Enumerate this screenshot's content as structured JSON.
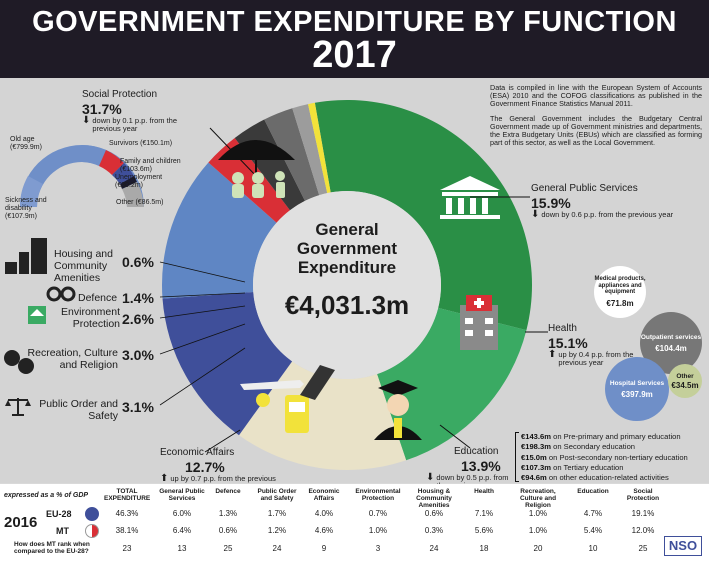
{
  "header": {
    "title": "GOVERNMENT EXPENDITURE BY FUNCTION",
    "year": "2017"
  },
  "center": {
    "line1": "General",
    "line2": "Government",
    "line3": "Expenditure",
    "total": "€4,031.3m"
  },
  "note": {
    "p1": "Data is compiled in line with the European System of Accounts (ESA) 2010 and the COFOG classifications as published in the Government Finance Statistics Manual 2011.",
    "p2": "The General Government includes the Budgetary Central Government made up of Government ministries and departments, the Extra Budgetary Units (EBUs) which are classified as forming part of this sector, as well as the Local Government."
  },
  "functions": {
    "social": {
      "label": "Social Protection",
      "pct": "31.7%",
      "change": "down by 0.1 p.p. from the previous year",
      "color": "#2a8f46"
    },
    "gps": {
      "label": "General Public Services",
      "pct": "15.9%",
      "change": "down by 0.6 p.p. from the previous year",
      "color": "#3aaa63"
    },
    "health": {
      "label": "Health",
      "pct": "15.1%",
      "change": "up by 0.4 p.p. from the previous year",
      "color": "#e9e2c8"
    },
    "education": {
      "label": "Education",
      "pct": "13.9%",
      "change": "down by 0.5 p.p. from the previous year",
      "color": "#3f4f9a"
    },
    "economic": {
      "label": "Economic Affairs",
      "pct": "12.7%",
      "change": "up by 0.7 p.p. from the previous year",
      "color": "#5f86c4"
    },
    "public_order": {
      "label": "Public Order and Safety",
      "pct": "3.1%",
      "color": "#d92f36"
    },
    "recreation": {
      "label": "Recreation, Culture and Religion",
      "pct": "3.0%",
      "color": "#3a3a3a"
    },
    "environment": {
      "label": "Environment Protection",
      "pct": "2.6%",
      "color": "#6b6b6b"
    },
    "defence": {
      "label": "Defence",
      "pct": "1.4%",
      "color": "#9c9c9c"
    },
    "housing": {
      "label": "Housing and Community Amenities",
      "pct": "0.6%",
      "color": "#f2e23a"
    }
  },
  "social_breakdown": {
    "old_age": "Old age (€799.9m)",
    "survivors": "Survivors (€150.1m)",
    "family": "Family and children (€103.6m)",
    "unemployment": "Unemployment (€30.2m)",
    "other": "Other (€86.5m)",
    "sickness": "Sickness and disability (€107.9m)"
  },
  "health_breakdown": {
    "medical": {
      "label": "Medical products, appliances and equipment",
      "value": "€71.8m"
    },
    "outpatient": {
      "label": "Outpatient services",
      "value": "€104.4m"
    },
    "hospital": {
      "label": "Hospital Services",
      "value": "€397.9m"
    },
    "other": {
      "label": "Other",
      "value": "€34.5m"
    }
  },
  "education_breakdown": [
    {
      "value": "€143.6m",
      "text": "on Pre-primary and primary education"
    },
    {
      "value": "€198.3m",
      "text": "on Secondary education"
    },
    {
      "value": "€15.0m",
      "text": "on Post-secondary non-tertiary education"
    },
    {
      "value": "€107.3m",
      "text": "on Tertiary education"
    },
    {
      "value": "€94.6m",
      "text": "on other education-related activities"
    }
  ],
  "table": {
    "caption": "expressed as a % of GDP",
    "headers": [
      "TOTAL EXPENDITURE",
      "General Public Services",
      "Defence",
      "Public Order and Safety",
      "Economic Affairs",
      "Environmental Protection",
      "Housing & Community Amenities",
      "Health",
      "Recreation, Culture and Religion",
      "Education",
      "Social Protection"
    ],
    "year": "2016",
    "eu_label": "EU-28",
    "mt_label": "MT",
    "rank_label": "How does MT rank when compared to the EU-28?",
    "eu": [
      "46.3%",
      "6.0%",
      "1.3%",
      "1.7%",
      "4.0%",
      "0.7%",
      "0.6%",
      "7.1%",
      "1.0%",
      "4.7%",
      "19.1%"
    ],
    "mt": [
      "38.1%",
      "6.4%",
      "0.6%",
      "1.2%",
      "4.6%",
      "1.0%",
      "0.3%",
      "5.6%",
      "1.0%",
      "5.4%",
      "12.0%"
    ],
    "rank": [
      "23",
      "13",
      "25",
      "24",
      "9",
      "3",
      "24",
      "18",
      "20",
      "10",
      "25"
    ],
    "logo": "NSO"
  }
}
